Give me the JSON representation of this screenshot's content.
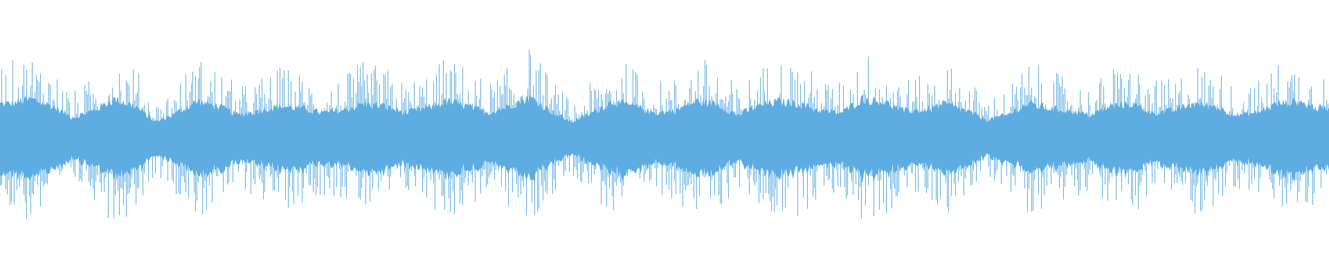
{
  "chart_data": {
    "type": "waveform",
    "title": "",
    "xlabel": "",
    "ylabel": "",
    "axes_visible": false,
    "grid": false,
    "color": "#5dade2",
    "ylim": [
      -1,
      1
    ],
    "envelope": [
      0.75,
      0.85,
      0.7,
      0.45,
      0.6,
      0.85,
      0.7,
      0.35,
      0.55,
      0.8,
      0.7,
      0.5,
      0.6,
      0.7,
      0.65,
      0.55,
      0.6,
      0.75,
      0.7,
      0.55,
      0.65,
      0.8,
      0.7,
      0.55,
      0.7,
      0.9,
      0.6,
      0.35,
      0.55,
      0.8,
      0.7,
      0.55,
      0.6,
      0.8,
      0.75,
      0.5,
      0.7,
      0.8,
      0.75,
      0.6,
      0.55,
      0.85,
      0.8,
      0.6,
      0.6,
      0.75,
      0.6,
      0.4,
      0.5,
      0.75,
      0.65,
      0.6,
      0.5,
      0.7,
      0.75,
      0.55,
      0.6,
      0.75,
      0.7,
      0.5,
      0.55,
      0.75,
      0.8,
      0.65
    ]
  }
}
